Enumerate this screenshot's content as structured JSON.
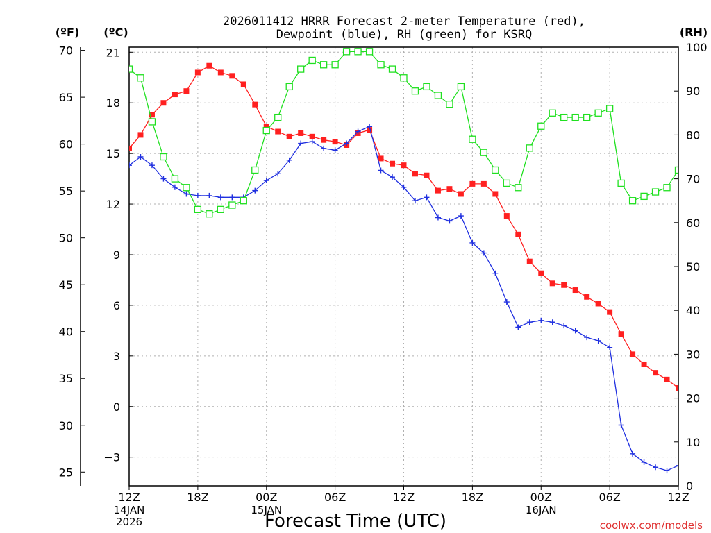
{
  "chart_data": {
    "type": "line",
    "title_lines": [
      "2026011412 HRRR Forecast 2-meter Temperature (red),",
      "Dewpoint (blue), RH (green) for KSRQ"
    ],
    "xlabel": "Forecast Time (UTC)",
    "credit": "coolwx.com/models",
    "unit_labels": {
      "fahrenheit": "(ºF)",
      "celsius": "(ºC)",
      "rh": "(RH)"
    },
    "x_hours": [
      0,
      1,
      2,
      3,
      4,
      5,
      6,
      7,
      8,
      9,
      10,
      11,
      12,
      13,
      14,
      15,
      16,
      17,
      18,
      19,
      20,
      21,
      22,
      23,
      24,
      25,
      26,
      27,
      28,
      29,
      30,
      31,
      32,
      33,
      34,
      35,
      36,
      37,
      38,
      39,
      40,
      41,
      42,
      43,
      44,
      45,
      46,
      47,
      48
    ],
    "xlim": [
      0,
      48
    ],
    "x_ticks": [
      {
        "hour": 0,
        "label": "12Z",
        "date": [
          "14JAN",
          "2026"
        ]
      },
      {
        "hour": 6,
        "label": "18Z",
        "date": []
      },
      {
        "hour": 12,
        "label": "00Z",
        "date": [
          "15JAN"
        ]
      },
      {
        "hour": 18,
        "label": "06Z",
        "date": []
      },
      {
        "hour": 24,
        "label": "12Z",
        "date": []
      },
      {
        "hour": 30,
        "label": "18Z",
        "date": []
      },
      {
        "hour": 36,
        "label": "00Z",
        "date": [
          "16JAN"
        ]
      },
      {
        "hour": 42,
        "label": "06Z",
        "date": []
      },
      {
        "hour": 48,
        "label": "12Z",
        "date": []
      }
    ],
    "celsius_axis": {
      "ylim": [
        -4.7,
        21.3
      ],
      "ticks": [
        21,
        18,
        15,
        12,
        9,
        6,
        3,
        0,
        -3
      ]
    },
    "fahrenheit_axis": {
      "ylim": [
        23.54,
        70.34
      ],
      "ticks": [
        70,
        65,
        60,
        55,
        50,
        45,
        40,
        35,
        30,
        25
      ]
    },
    "rh_axis": {
      "ylim": [
        0,
        100
      ],
      "ticks": [
        100,
        90,
        80,
        70,
        60,
        50,
        40,
        30,
        20,
        10,
        0
      ]
    },
    "series": [
      {
        "name": "Temperature",
        "axis": "celsius",
        "color": "#ff2020",
        "marker": "filled-square",
        "values": [
          15.3,
          16.1,
          17.3,
          18.0,
          18.5,
          18.7,
          19.8,
          20.2,
          19.8,
          19.6,
          19.1,
          17.9,
          16.6,
          16.3,
          16.0,
          16.2,
          16.0,
          15.8,
          15.7,
          15.5,
          16.2,
          16.4,
          14.7,
          14.4,
          14.3,
          13.8,
          13.7,
          12.8,
          12.9,
          12.6,
          13.2,
          13.2,
          12.6,
          11.3,
          10.2,
          8.6,
          7.9,
          7.3,
          7.2,
          6.9,
          6.5,
          6.1,
          5.6,
          4.3,
          3.1,
          2.5,
          2.0,
          1.6,
          1.1
        ]
      },
      {
        "name": "Dewpoint",
        "axis": "celsius",
        "color": "#2030e0",
        "marker": "plus",
        "values": [
          14.3,
          14.8,
          14.3,
          13.5,
          13.0,
          12.6,
          12.5,
          12.5,
          12.4,
          12.4,
          12.4,
          12.8,
          13.4,
          13.8,
          14.6,
          15.6,
          15.7,
          15.3,
          15.2,
          15.6,
          16.3,
          16.6,
          14.0,
          13.6,
          13.0,
          12.2,
          12.4,
          11.2,
          11.0,
          11.3,
          9.7,
          9.1,
          7.9,
          6.2,
          4.7,
          5.0,
          5.1,
          5.0,
          4.8,
          4.5,
          4.1,
          3.9,
          3.5,
          -1.1,
          -2.8,
          -3.3,
          -3.6,
          -3.8,
          -3.5
        ]
      },
      {
        "name": "RH",
        "axis": "rh",
        "color": "#20e020",
        "marker": "open-square",
        "values": [
          95,
          93,
          83,
          75,
          70,
          68,
          63,
          62,
          63,
          64,
          65,
          72,
          81,
          84,
          91,
          95,
          97,
          96,
          96,
          99,
          99,
          99,
          96,
          95,
          93,
          90,
          91,
          89,
          87,
          91,
          79,
          76,
          72,
          69,
          68,
          77,
          82,
          85,
          84,
          84,
          84,
          85,
          86,
          69,
          65,
          66,
          67,
          68,
          72
        ]
      }
    ]
  }
}
